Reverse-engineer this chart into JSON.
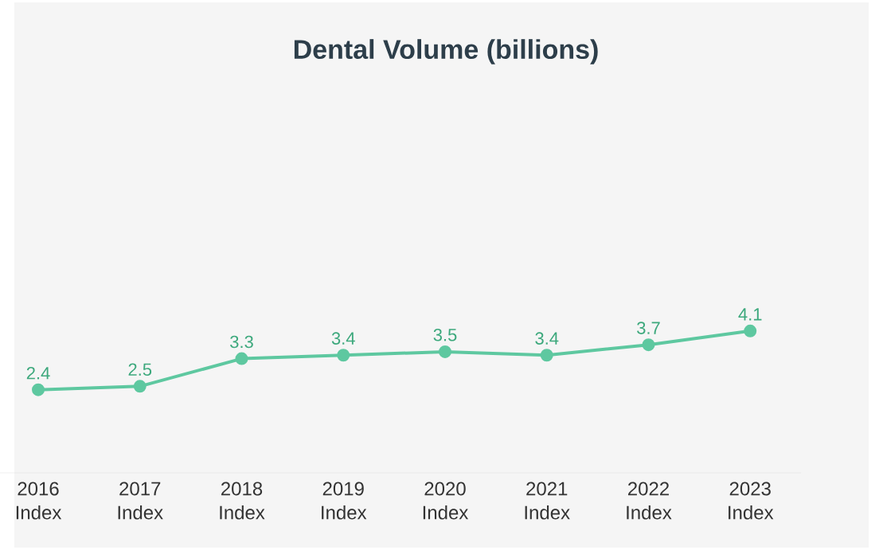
{
  "chart_data": {
    "type": "line",
    "title": "Dental Volume (billions)",
    "categories": [
      "2016 Index",
      "2017 Index",
      "2018 Index",
      "2019 Index",
      "2020 Index",
      "2021 Index",
      "2022 Index",
      "2023 Index"
    ],
    "values": [
      2.4,
      2.5,
      3.3,
      3.4,
      3.5,
      3.4,
      3.7,
      4.1
    ],
    "color": "#5ec8a0",
    "data_labels": true,
    "marker": "circle",
    "line_style": "solid"
  }
}
